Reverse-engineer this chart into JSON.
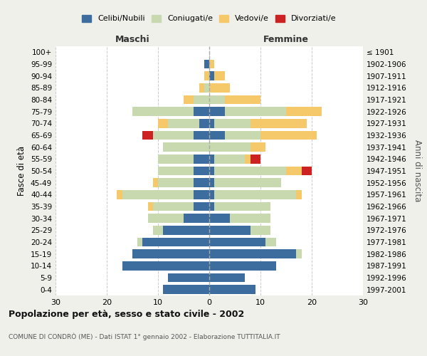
{
  "age_groups": [
    "0-4",
    "5-9",
    "10-14",
    "15-19",
    "20-24",
    "25-29",
    "30-34",
    "35-39",
    "40-44",
    "45-49",
    "50-54",
    "55-59",
    "60-64",
    "65-69",
    "70-74",
    "75-79",
    "80-84",
    "85-89",
    "90-94",
    "95-99",
    "100+"
  ],
  "birth_years": [
    "1997-2001",
    "1992-1996",
    "1987-1991",
    "1982-1986",
    "1977-1981",
    "1972-1976",
    "1967-1971",
    "1962-1966",
    "1957-1961",
    "1952-1956",
    "1947-1951",
    "1942-1946",
    "1937-1941",
    "1932-1936",
    "1927-1931",
    "1922-1926",
    "1917-1921",
    "1912-1916",
    "1907-1911",
    "1902-1906",
    "≤ 1901"
  ],
  "maschi": {
    "celibi": [
      9,
      8,
      17,
      15,
      13,
      9,
      5,
      3,
      3,
      3,
      3,
      3,
      0,
      3,
      2,
      3,
      0,
      0,
      0,
      1,
      0
    ],
    "coniugati": [
      0,
      0,
      0,
      0,
      1,
      2,
      7,
      8,
      14,
      7,
      7,
      7,
      9,
      8,
      6,
      12,
      3,
      1,
      0,
      0,
      0
    ],
    "vedovi": [
      0,
      0,
      0,
      0,
      0,
      0,
      0,
      1,
      1,
      1,
      0,
      0,
      0,
      0,
      2,
      0,
      2,
      1,
      1,
      0,
      0
    ],
    "divorziati": [
      0,
      0,
      0,
      0,
      0,
      0,
      0,
      0,
      0,
      0,
      0,
      0,
      0,
      2,
      0,
      0,
      0,
      0,
      0,
      0,
      0
    ]
  },
  "femmine": {
    "nubili": [
      9,
      7,
      13,
      17,
      11,
      8,
      4,
      1,
      1,
      1,
      1,
      1,
      0,
      3,
      1,
      3,
      0,
      0,
      1,
      0,
      0
    ],
    "coniugate": [
      0,
      0,
      0,
      1,
      2,
      4,
      8,
      11,
      16,
      13,
      14,
      6,
      8,
      7,
      7,
      12,
      3,
      0,
      0,
      0,
      0
    ],
    "vedove": [
      0,
      0,
      0,
      0,
      0,
      0,
      0,
      0,
      1,
      0,
      3,
      1,
      3,
      11,
      11,
      7,
      7,
      4,
      2,
      1,
      0
    ],
    "divorziate": [
      0,
      0,
      0,
      0,
      0,
      0,
      0,
      0,
      0,
      0,
      2,
      2,
      0,
      0,
      0,
      0,
      0,
      0,
      0,
      0,
      0
    ]
  },
  "colors": {
    "celibi_nubili": "#3d6d9e",
    "coniugati": "#c8d9b0",
    "vedovi": "#f5c96a",
    "divorziati": "#cc2222"
  },
  "xlim": 30,
  "title": "Popolazione per età, sesso e stato civile - 2002",
  "subtitle": "COMUNE DI CONDRÒ (ME) - Dati ISTAT 1° gennaio 2002 - Elaborazione TUTTITALIA.IT",
  "ylabel": "Fasce di età",
  "right_ylabel": "Anni di nascita",
  "legend_labels": [
    "Celibi/Nubili",
    "Coniugati/e",
    "Vedovi/e",
    "Divorziati/e"
  ],
  "maschi_label": "Maschi",
  "femmine_label": "Femmine",
  "background_color": "#f0f0eb",
  "plot_bg": "#ffffff"
}
